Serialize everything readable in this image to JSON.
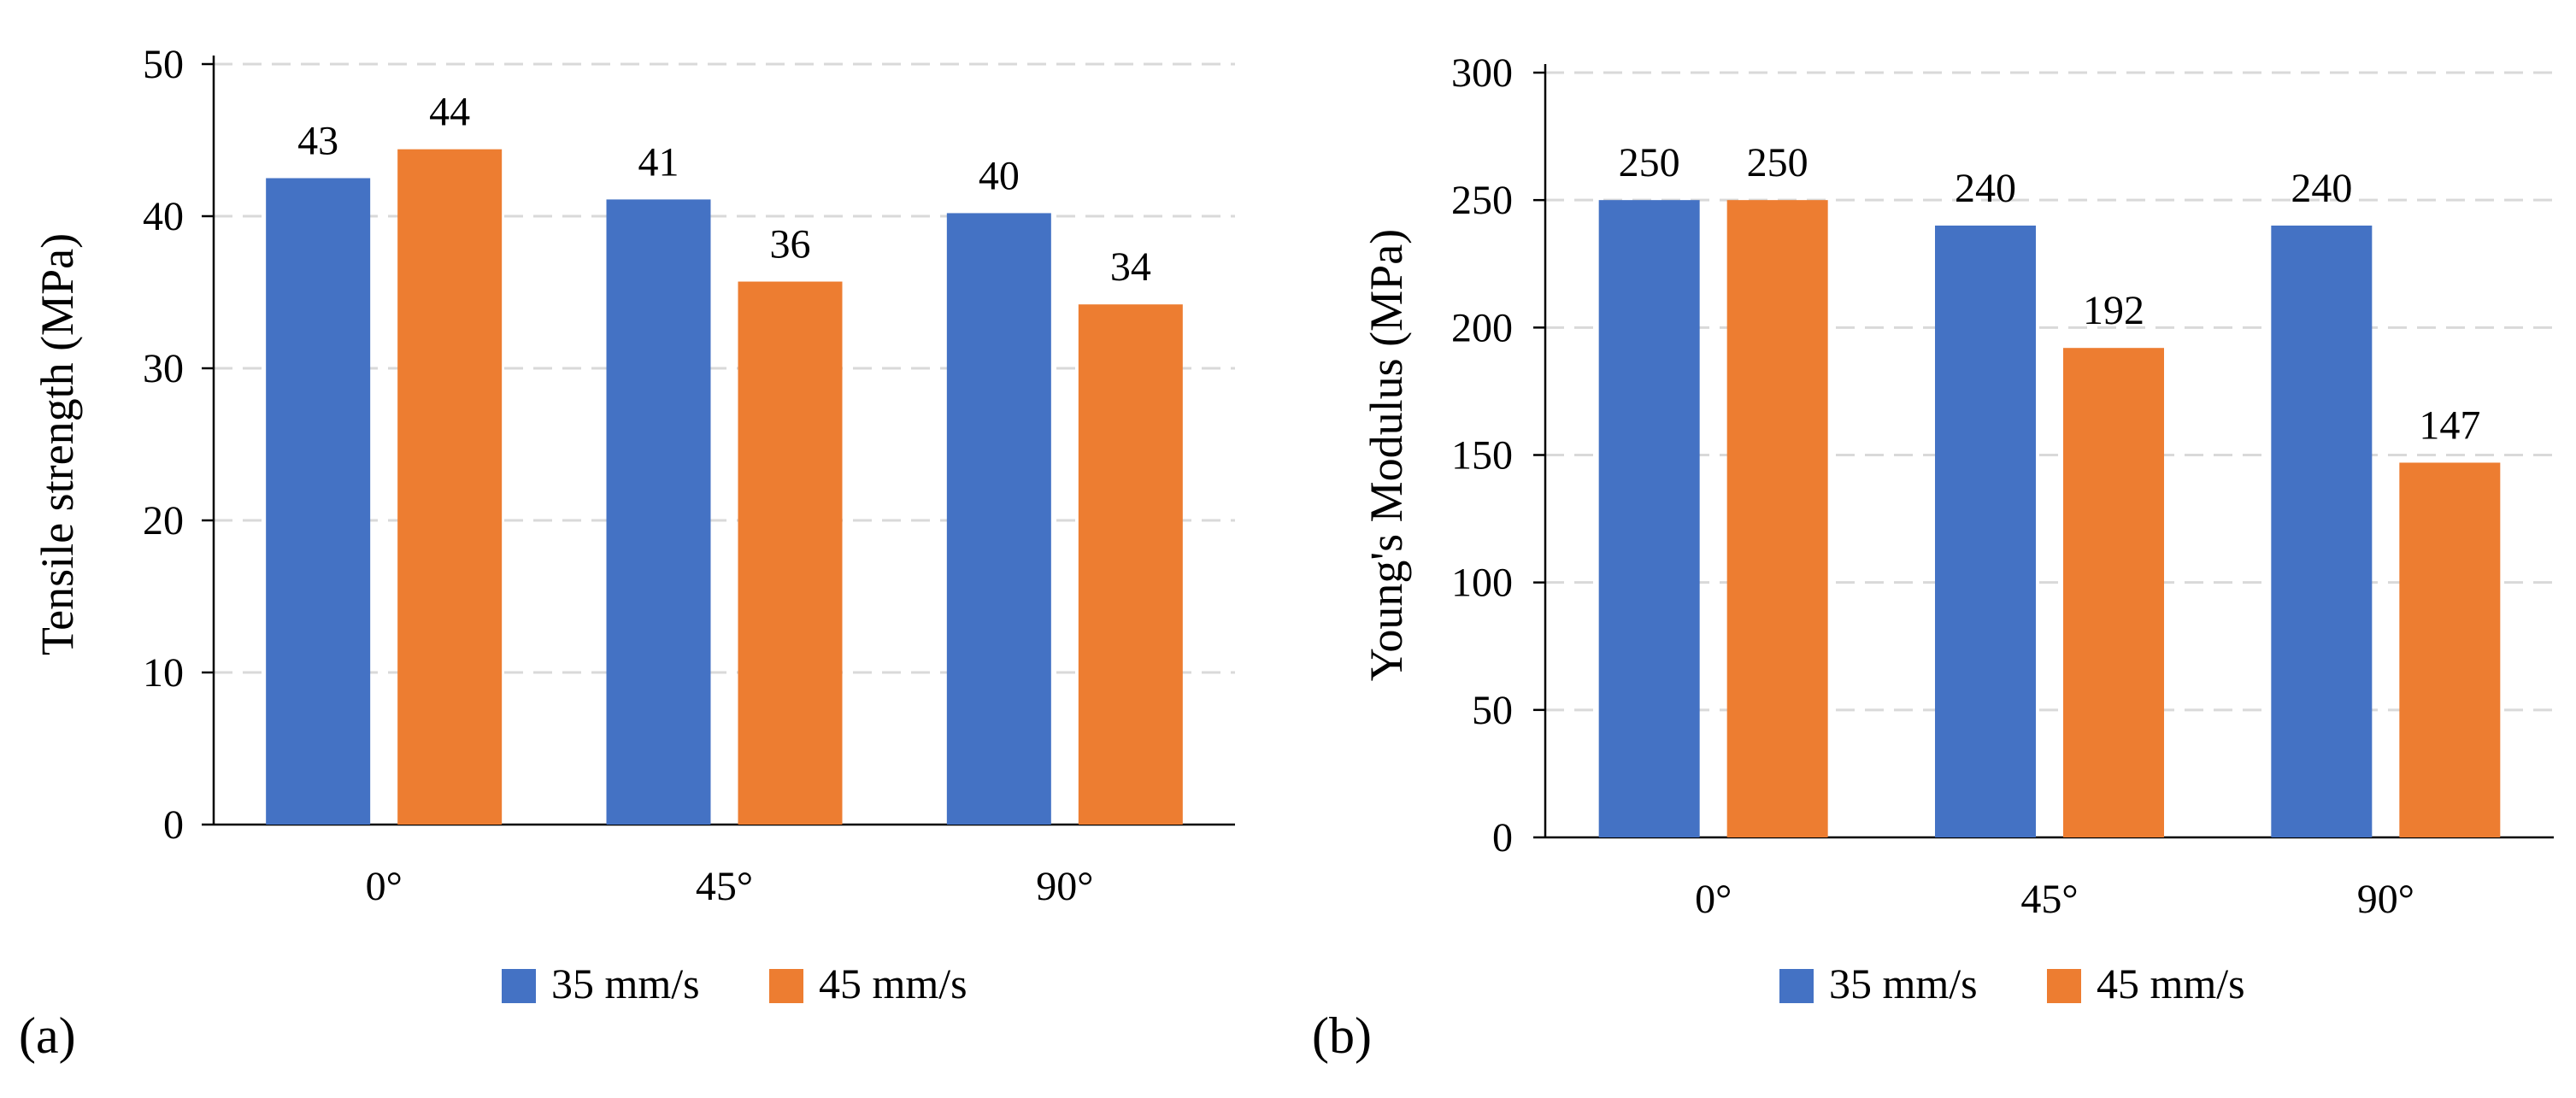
{
  "colors": {
    "series_1": "#4472C4",
    "series_2": "#ED7D31",
    "gridline": "#D9D9D9",
    "axis": "#000000"
  },
  "chart_data": [
    {
      "panel_label": "(a)",
      "type": "bar",
      "categories": [
        "0°",
        "45°",
        "90°"
      ],
      "series": [
        {
          "name": "35 mm/s",
          "values": [
            42.5,
            41.1,
            40.2
          ],
          "labels": [
            "43",
            "41",
            "40"
          ]
        },
        {
          "name": "45 mm/s",
          "values": [
            44.4,
            35.7,
            34.2
          ],
          "labels": [
            "44",
            "36",
            "34"
          ]
        }
      ],
      "ylabel": "Tensile strength (MPa)",
      "xlabel": "",
      "ylim": [
        0,
        50
      ],
      "yticks": [
        0,
        10,
        20,
        30,
        40,
        50
      ],
      "grid": "horizontal dashed",
      "legend": "bottom"
    },
    {
      "panel_label": "(b)",
      "type": "bar",
      "categories": [
        "0°",
        "45°",
        "90°"
      ],
      "series": [
        {
          "name": "35 mm/s",
          "values": [
            250,
            240,
            240
          ],
          "labels": [
            "250",
            "240",
            "240"
          ]
        },
        {
          "name": "45 mm/s",
          "values": [
            250,
            192,
            147
          ],
          "labels": [
            "250",
            "192",
            "147"
          ]
        }
      ],
      "ylabel": "Young's Modulus (MPa)",
      "xlabel": "",
      "ylim": [
        0,
        300
      ],
      "yticks": [
        0,
        50,
        100,
        150,
        200,
        250,
        300
      ],
      "grid": "horizontal dashed",
      "legend": "bottom"
    }
  ]
}
